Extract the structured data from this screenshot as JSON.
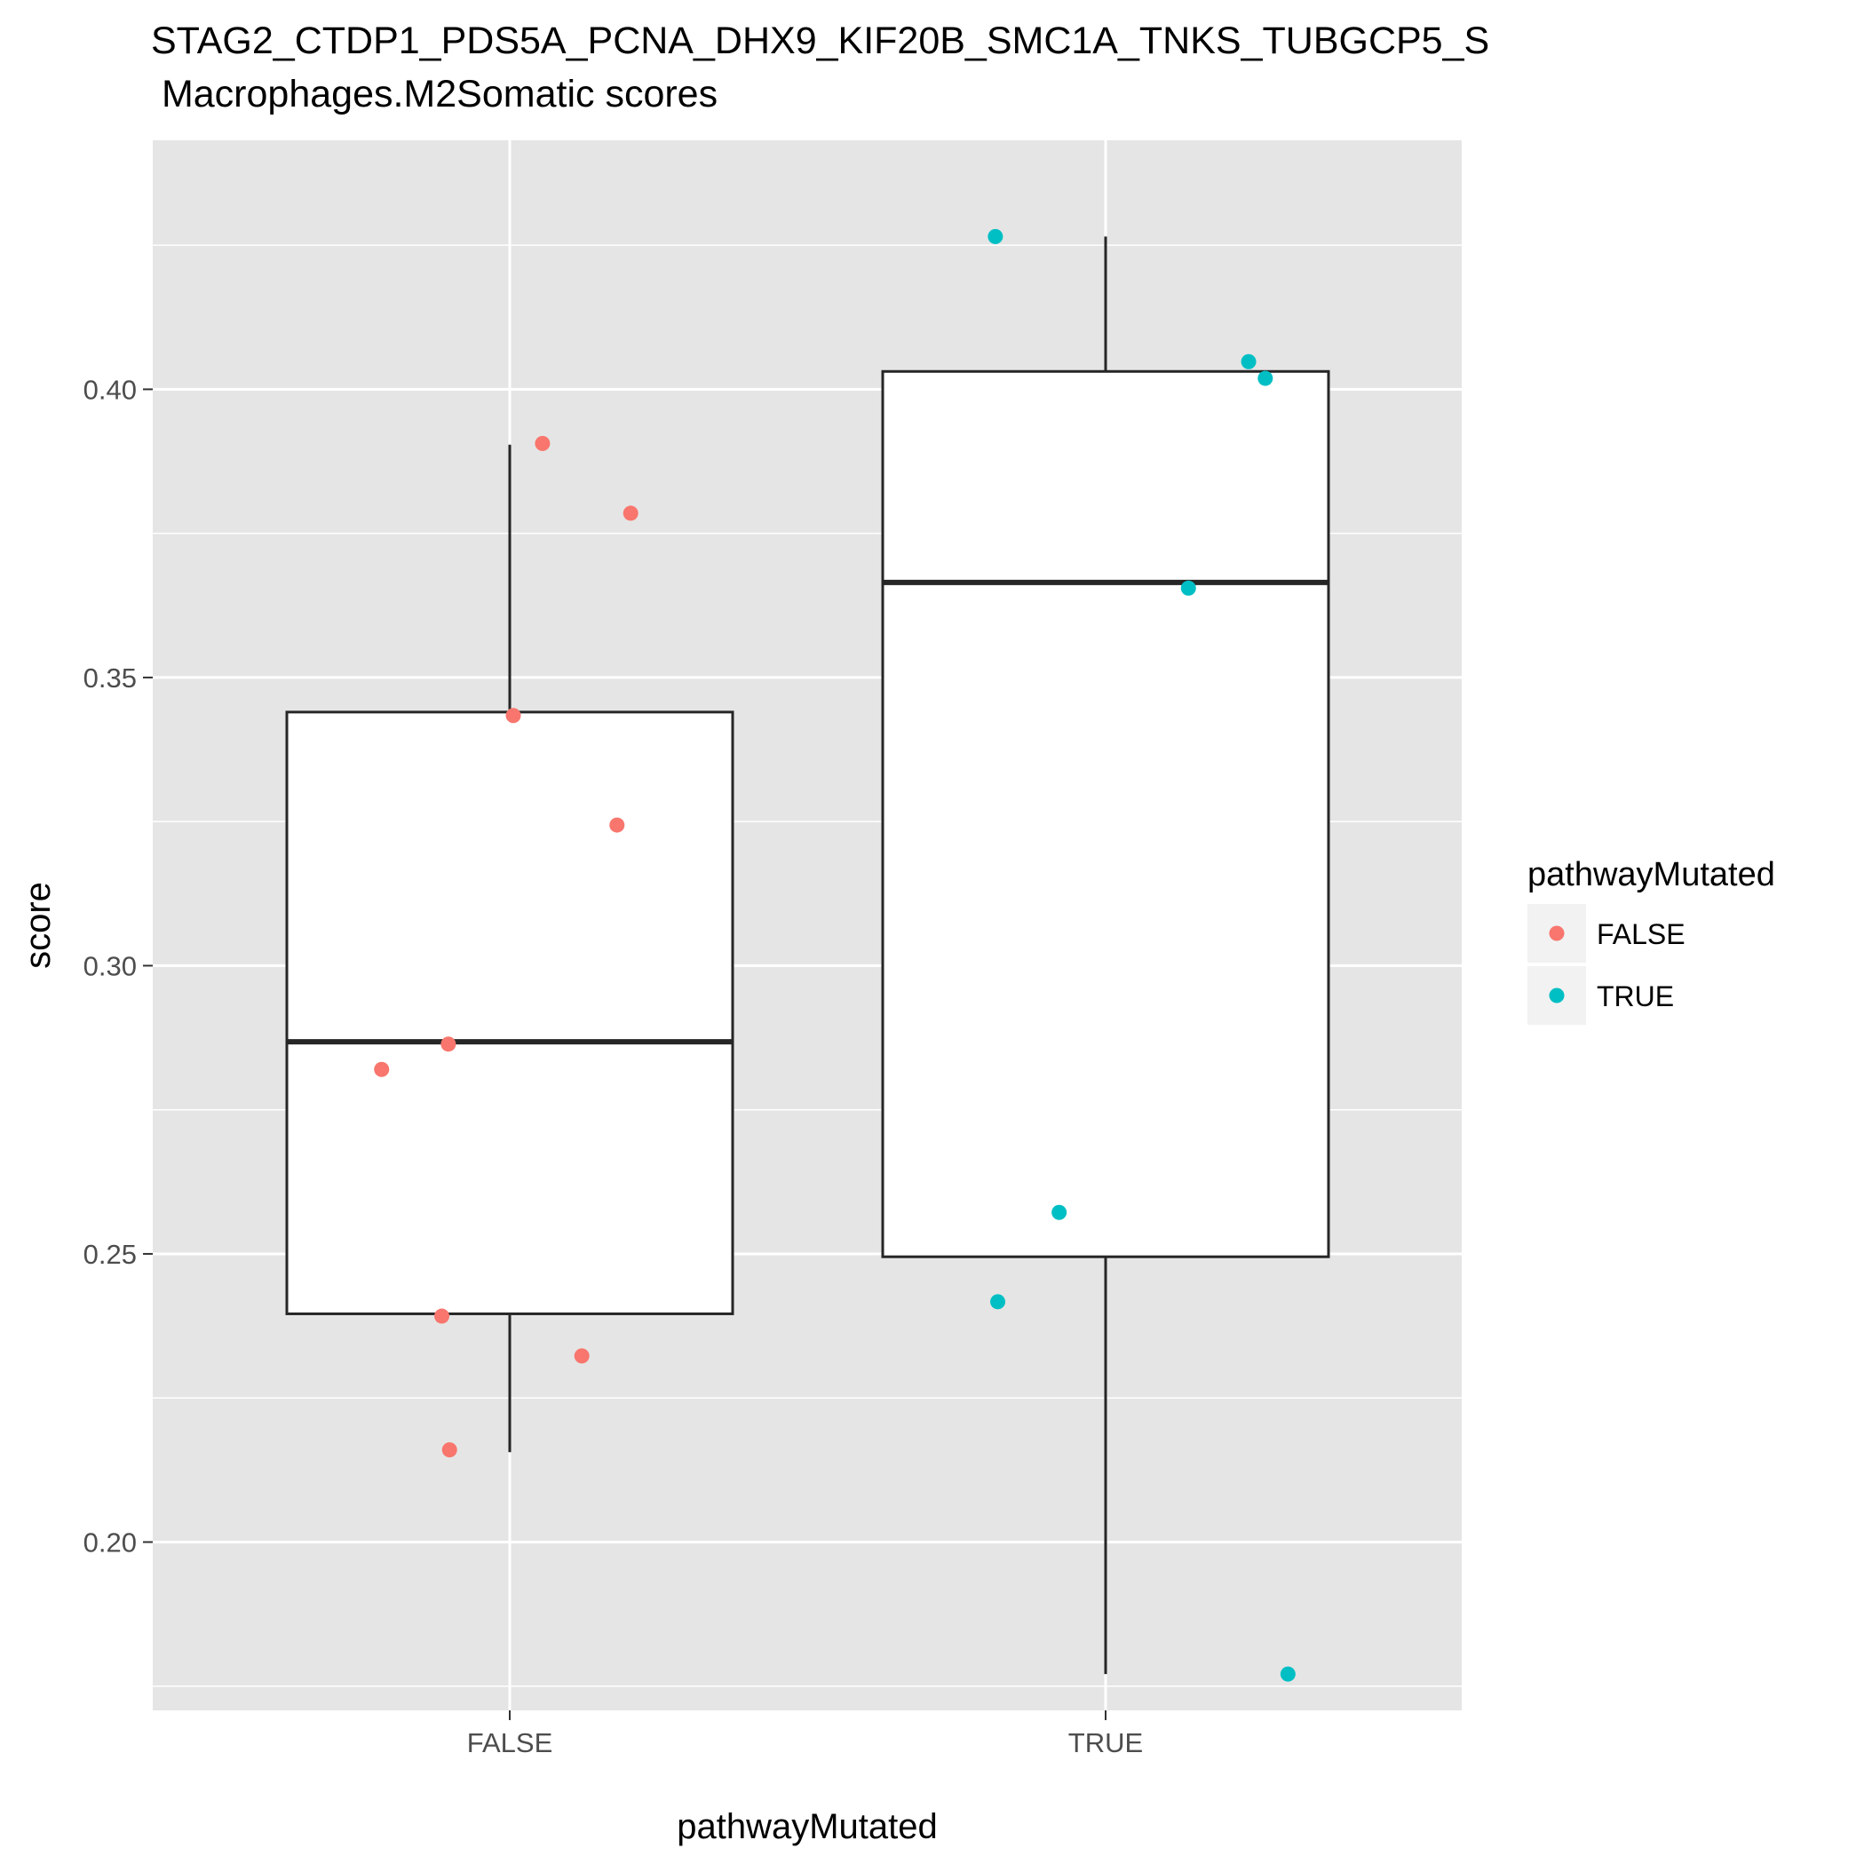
{
  "chart_data": {
    "type": "box",
    "title_line1": "STAG2_CTDP1_PDS5A_PCNA_DHX9_KIF20B_SMC1A_TNKS_TUBGCP5_S",
    "title_line2": " Macrophages.M2Somatic scores",
    "xlabel": "pathwayMutated",
    "ylabel": "score",
    "categories": [
      "FALSE",
      "TRUE"
    ],
    "ylim": [
      0.1708,
      0.4432
    ],
    "yticks": [
      0.2,
      0.25,
      0.3,
      0.35,
      0.4
    ],
    "ytick_labels": [
      "0.20",
      "0.25",
      "0.30",
      "0.35",
      "0.40"
    ],
    "grid": true,
    "legend": {
      "title": "pathwayMutated",
      "position": "right",
      "entries": [
        {
          "label": "FALSE",
          "color": "#F8766D"
        },
        {
          "label": "TRUE",
          "color": "#00BFC4"
        }
      ]
    },
    "boxes": [
      {
        "category": "FALSE",
        "lower_whisker": 0.2156,
        "q1": 0.2396,
        "median": 0.2868,
        "q3": 0.344,
        "upper_whisker": 0.3904
      },
      {
        "category": "TRUE",
        "lower_whisker": 0.1771,
        "q1": 0.2495,
        "median": 0.3665,
        "q3": 0.4031,
        "upper_whisker": 0.4265
      }
    ],
    "points": [
      {
        "category": "FALSE",
        "jitter": 0.055,
        "y": 0.3906
      },
      {
        "category": "FALSE",
        "jitter": 0.203,
        "y": 0.3785
      },
      {
        "category": "FALSE",
        "jitter": 0.006,
        "y": 0.3434
      },
      {
        "category": "FALSE",
        "jitter": 0.18,
        "y": 0.3244
      },
      {
        "category": "FALSE",
        "jitter": -0.103,
        "y": 0.2864
      },
      {
        "category": "FALSE",
        "jitter": -0.215,
        "y": 0.282
      },
      {
        "category": "FALSE",
        "jitter": -0.114,
        "y": 0.2392
      },
      {
        "category": "FALSE",
        "jitter": 0.121,
        "y": 0.2323
      },
      {
        "category": "FALSE",
        "jitter": -0.101,
        "y": 0.216
      },
      {
        "category": "TRUE",
        "jitter": -0.185,
        "y": 0.4265
      },
      {
        "category": "TRUE",
        "jitter": 0.24,
        "y": 0.4048
      },
      {
        "category": "TRUE",
        "jitter": 0.268,
        "y": 0.4019
      },
      {
        "category": "TRUE",
        "jitter": 0.139,
        "y": 0.3655
      },
      {
        "category": "TRUE",
        "jitter": -0.078,
        "y": 0.2572
      },
      {
        "category": "TRUE",
        "jitter": -0.181,
        "y": 0.2417
      },
      {
        "category": "TRUE",
        "jitter": 0.306,
        "y": 0.1771
      }
    ],
    "colors": {
      "panel": "#E5E5E5",
      "grid": "#FFFFFF",
      "box_stroke": "#262626",
      "axis_text": "#4D4D4D",
      "FALSE": "#F8766D",
      "TRUE": "#00BFC4"
    }
  }
}
